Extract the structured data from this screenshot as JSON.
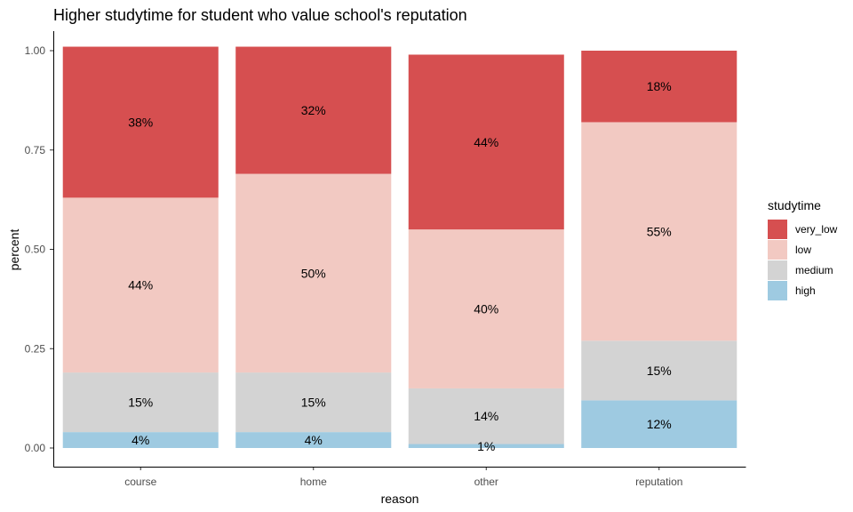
{
  "chart_data": {
    "type": "bar",
    "stacked": true,
    "title": "Higher studytime for student who value school's reputation",
    "xlabel": "reason",
    "ylabel": "percent",
    "ylim": [
      0,
      1
    ],
    "yticks": [
      "0.00",
      "0.25",
      "0.50",
      "0.75",
      "1.00"
    ],
    "categories": [
      "course",
      "home",
      "other",
      "reputation"
    ],
    "grid": false,
    "legend": {
      "title": "studytime",
      "position": "right"
    },
    "series": [
      {
        "name": "high",
        "color": "#9ecae1",
        "values": [
          0.04,
          0.04,
          0.01,
          0.12
        ],
        "labels": [
          "4%",
          "4%",
          "1%",
          "12%"
        ]
      },
      {
        "name": "medium",
        "color": "#d3d3d3",
        "values": [
          0.15,
          0.15,
          0.14,
          0.15
        ],
        "labels": [
          "15%",
          "15%",
          "14%",
          "15%"
        ]
      },
      {
        "name": "low",
        "color": "#f2c9c2",
        "values": [
          0.44,
          0.5,
          0.4,
          0.55
        ],
        "labels": [
          "44%",
          "50%",
          "40%",
          "55%"
        ]
      },
      {
        "name": "very_low",
        "color": "#d64f50",
        "values": [
          0.38,
          0.32,
          0.44,
          0.18
        ],
        "labels": [
          "38%",
          "32%",
          "44%",
          "18%"
        ]
      }
    ],
    "legend_order": [
      "very_low",
      "low",
      "medium",
      "high"
    ]
  }
}
